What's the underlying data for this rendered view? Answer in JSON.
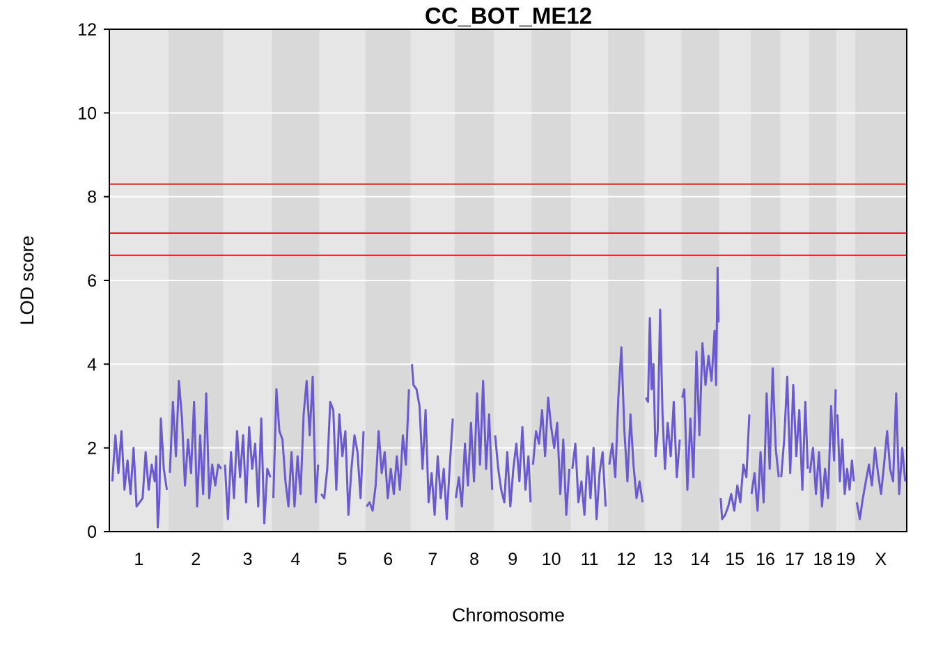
{
  "chart_data": {
    "type": "line",
    "title": "CC_BOT_ME12",
    "xlabel": "Chromosome",
    "ylabel": "LOD score",
    "ylim": [
      0,
      12
    ],
    "yticks": [
      0,
      2,
      4,
      6,
      8,
      10,
      12
    ],
    "grid": true,
    "chromosomes": [
      {
        "label": "1",
        "start": 0,
        "end": 195
      },
      {
        "label": "2",
        "start": 195,
        "end": 377
      },
      {
        "label": "3",
        "start": 377,
        "end": 537
      },
      {
        "label": "4",
        "start": 537,
        "end": 694
      },
      {
        "label": "5",
        "start": 694,
        "end": 846
      },
      {
        "label": "6",
        "start": 846,
        "end": 996
      },
      {
        "label": "7",
        "start": 996,
        "end": 1141
      },
      {
        "label": "8",
        "start": 1141,
        "end": 1271
      },
      {
        "label": "9",
        "start": 1271,
        "end": 1395
      },
      {
        "label": "10",
        "start": 1395,
        "end": 1526
      },
      {
        "label": "11",
        "start": 1526,
        "end": 1648
      },
      {
        "label": "12",
        "start": 1648,
        "end": 1769
      },
      {
        "label": "13",
        "start": 1769,
        "end": 1890
      },
      {
        "label": "14",
        "start": 1890,
        "end": 2015
      },
      {
        "label": "15",
        "start": 2015,
        "end": 2119
      },
      {
        "label": "16",
        "start": 2119,
        "end": 2217
      },
      {
        "label": "17",
        "start": 2217,
        "end": 2312
      },
      {
        "label": "18",
        "start": 2312,
        "end": 2403
      },
      {
        "label": "19",
        "start": 2403,
        "end": 2464
      },
      {
        "label": "X",
        "start": 2464,
        "end": 2635
      }
    ],
    "thresholds": [
      8.3,
      7.13,
      6.6
    ],
    "threshold_color": "#e31a1c",
    "line_color": "#6a5acd",
    "series": [
      {
        "chr": "1",
        "pos": [
          10,
          20,
          30,
          40,
          50,
          60,
          70,
          80,
          90,
          100,
          110,
          120,
          130,
          140,
          150,
          155,
          160,
          165,
          170,
          180,
          190
        ],
        "lod": [
          1.2,
          2.3,
          1.4,
          2.4,
          1.0,
          1.7,
          0.9,
          2.0,
          0.6,
          0.7,
          0.8,
          1.9,
          1.0,
          1.6,
          1.2,
          1.8,
          0.1,
          0.7,
          2.7,
          1.5,
          1.0
        ]
      },
      {
        "chr": "2",
        "pos": [
          200,
          210,
          220,
          230,
          240,
          250,
          260,
          270,
          280,
          290,
          300,
          310,
          320,
          330,
          340,
          350,
          360,
          370
        ],
        "lod": [
          1.4,
          3.1,
          1.8,
          3.6,
          2.7,
          1.1,
          2.2,
          1.4,
          3.1,
          0.6,
          2.3,
          0.9,
          3.3,
          0.8,
          1.6,
          1.1,
          1.6,
          1.5
        ]
      },
      {
        "chr": "3",
        "pos": [
          382,
          392,
          402,
          412,
          422,
          432,
          442,
          452,
          462,
          472,
          482,
          492,
          502,
          512,
          522,
          532
        ],
        "lod": [
          1.6,
          0.3,
          1.9,
          0.8,
          2.4,
          1.3,
          2.3,
          0.7,
          2.5,
          1.5,
          2.1,
          0.6,
          2.7,
          0.2,
          1.5,
          1.3
        ]
      },
      {
        "chr": "4",
        "pos": [
          542,
          552,
          562,
          572,
          582,
          592,
          602,
          612,
          622,
          632,
          642,
          652,
          662,
          672,
          682,
          690
        ],
        "lod": [
          0.8,
          3.4,
          2.4,
          2.2,
          1.2,
          0.6,
          1.9,
          0.6,
          1.8,
          0.9,
          2.8,
          3.6,
          2.3,
          3.7,
          0.7,
          1.6
        ]
      },
      {
        "chr": "5",
        "pos": [
          700,
          710,
          720,
          730,
          740,
          750,
          760,
          770,
          780,
          790,
          800,
          810,
          820,
          830,
          840
        ],
        "lod": [
          0.9,
          0.8,
          1.5,
          3.1,
          2.9,
          1.0,
          2.8,
          1.8,
          2.4,
          0.4,
          1.5,
          2.3,
          1.9,
          0.8,
          2.4
        ]
      },
      {
        "chr": "6",
        "pos": [
          850,
          860,
          870,
          880,
          890,
          900,
          910,
          920,
          930,
          940,
          950,
          960,
          970,
          980,
          990
        ],
        "lod": [
          0.6,
          0.7,
          0.5,
          1.1,
          2.4,
          1.4,
          1.9,
          0.8,
          1.5,
          0.9,
          1.8,
          1.0,
          2.3,
          1.6,
          3.4
        ]
      },
      {
        "chr": "7",
        "pos": [
          1000,
          1005,
          1015,
          1025,
          1035,
          1045,
          1055,
          1065,
          1075,
          1085,
          1095,
          1105,
          1115,
          1125,
          1135
        ],
        "lod": [
          4.0,
          3.5,
          3.4,
          3.0,
          1.5,
          2.9,
          0.7,
          1.4,
          0.4,
          1.8,
          0.8,
          1.5,
          0.3,
          1.6,
          2.7
        ]
      },
      {
        "chr": "8",
        "pos": [
          1145,
          1155,
          1165,
          1175,
          1185,
          1195,
          1205,
          1215,
          1225,
          1235,
          1245,
          1255,
          1265
        ],
        "lod": [
          0.8,
          1.3,
          0.6,
          2.1,
          1.1,
          2.6,
          1.2,
          3.3,
          1.6,
          3.6,
          1.5,
          2.8,
          1.0
        ]
      },
      {
        "chr": "9",
        "pos": [
          1275,
          1285,
          1295,
          1305,
          1315,
          1325,
          1335,
          1345,
          1355,
          1365,
          1375,
          1385,
          1392
        ],
        "lod": [
          2.3,
          1.5,
          1.0,
          0.7,
          1.9,
          0.6,
          1.5,
          2.1,
          1.2,
          2.5,
          1.0,
          1.8,
          0.7
        ]
      },
      {
        "chr": "10",
        "pos": [
          1400,
          1410,
          1420,
          1430,
          1440,
          1450,
          1460,
          1470,
          1480,
          1490,
          1500,
          1510,
          1520
        ],
        "lod": [
          1.6,
          2.4,
          2.1,
          2.9,
          1.8,
          3.2,
          2.5,
          2.0,
          2.6,
          0.9,
          2.2,
          0.4,
          1.5
        ]
      },
      {
        "chr": "11",
        "pos": [
          1530,
          1540,
          1550,
          1560,
          1570,
          1580,
          1590,
          1600,
          1610,
          1620,
          1630,
          1640
        ],
        "lod": [
          1.5,
          2.1,
          0.7,
          1.2,
          0.4,
          1.8,
          0.8,
          2.0,
          0.3,
          1.4,
          1.9,
          0.6
        ]
      },
      {
        "chr": "12",
        "pos": [
          1652,
          1662,
          1672,
          1682,
          1692,
          1702,
          1712,
          1722,
          1732,
          1742,
          1752,
          1762
        ],
        "lod": [
          1.6,
          2.1,
          1.3,
          3.2,
          4.4,
          2.4,
          1.2,
          2.8,
          1.6,
          0.8,
          1.2,
          0.7
        ]
      },
      {
        "chr": "13",
        "pos": [
          1773,
          1780,
          1786,
          1792,
          1798,
          1805,
          1812,
          1820,
          1828,
          1836,
          1845,
          1855,
          1865,
          1875,
          1885
        ],
        "lod": [
          3.2,
          3.1,
          5.1,
          3.4,
          4.0,
          1.8,
          2.4,
          5.3,
          2.8,
          1.5,
          2.6,
          1.8,
          3.1,
          1.3,
          2.2
        ]
      },
      {
        "chr": "14",
        "pos": [
          1893,
          1900,
          1910,
          1920,
          1930,
          1940,
          1950,
          1960,
          1970,
          1980,
          1990,
          2000,
          2005,
          2010,
          2013
        ],
        "lod": [
          3.2,
          3.4,
          1.0,
          2.7,
          1.3,
          4.3,
          2.3,
          4.5,
          3.5,
          4.2,
          3.6,
          4.8,
          3.5,
          6.3,
          5.0
        ]
      },
      {
        "chr": "15",
        "pos": [
          2020,
          2025,
          2035,
          2045,
          2055,
          2065,
          2075,
          2085,
          2095,
          2105,
          2115
        ],
        "lod": [
          0.8,
          0.3,
          0.4,
          0.6,
          0.9,
          0.5,
          1.1,
          0.7,
          1.6,
          1.3,
          2.8
        ]
      },
      {
        "chr": "16",
        "pos": [
          2122,
          2132,
          2142,
          2152,
          2162,
          2172,
          2182,
          2192,
          2202,
          2212
        ],
        "lod": [
          0.9,
          1.4,
          0.5,
          1.9,
          0.7,
          3.3,
          1.5,
          3.9,
          2.0,
          1.3
        ]
      },
      {
        "chr": "17",
        "pos": [
          2220,
          2230,
          2240,
          2250,
          2260,
          2270,
          2280,
          2290,
          2300,
          2308
        ],
        "lod": [
          1.3,
          2.2,
          3.7,
          1.4,
          3.5,
          1.8,
          2.9,
          1.0,
          3.1,
          1.5
        ]
      },
      {
        "chr": "18",
        "pos": [
          2315,
          2325,
          2335,
          2345,
          2355,
          2365,
          2375,
          2385,
          2395,
          2400
        ],
        "lod": [
          1.4,
          2.0,
          0.9,
          1.9,
          0.6,
          1.5,
          0.8,
          3.0,
          1.7,
          3.4
        ]
      },
      {
        "chr": "19",
        "pos": [
          2406,
          2414,
          2422,
          2430,
          2438,
          2446,
          2454,
          2460
        ],
        "lod": [
          2.8,
          1.2,
          2.2,
          0.9,
          1.5,
          1.0,
          1.7,
          1.2
        ]
      },
      {
        "chr": "X",
        "pos": [
          2470,
          2480,
          2490,
          2500,
          2510,
          2520,
          2530,
          2540,
          2550,
          2560,
          2570,
          2580,
          2590,
          2600,
          2610,
          2620,
          2630
        ],
        "lod": [
          0.7,
          0.3,
          0.8,
          1.2,
          1.6,
          1.1,
          2.0,
          1.4,
          0.9,
          1.6,
          2.4,
          1.5,
          1.2,
          3.3,
          0.9,
          2.0,
          1.2
        ]
      }
    ]
  }
}
